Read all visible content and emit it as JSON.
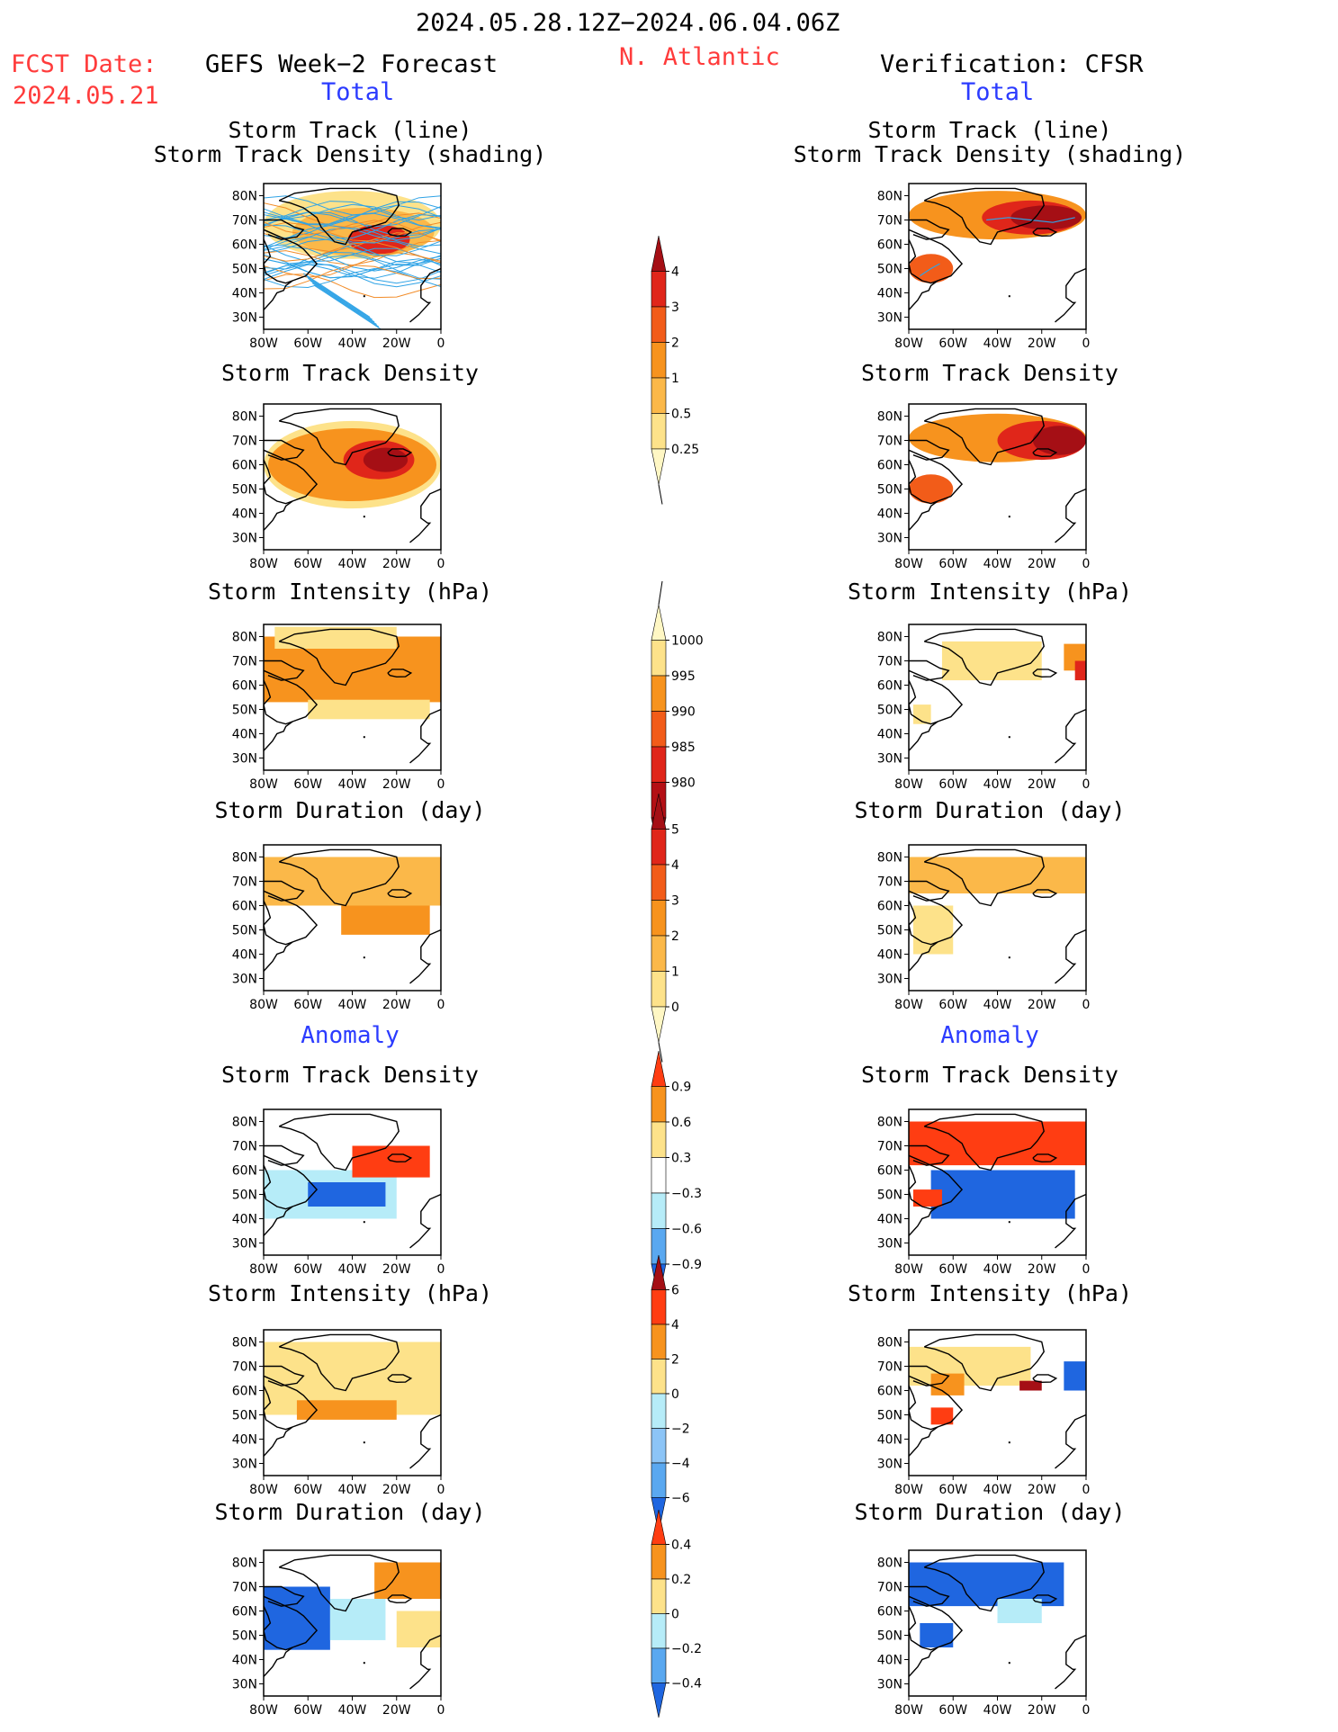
{
  "header": {
    "date_range": "2024.05.28.12Z−2024.06.04.06Z",
    "fcst_label": "FCST Date:",
    "fcst_date": "2024.05.21",
    "left_model": "GEFS Week−2 Forecast",
    "region": "N. Atlantic",
    "right_model": "Verification: CFSR",
    "total_label": "Total",
    "anomaly_label": "Anomaly"
  },
  "panel_titles": {
    "track_line": "Storm Track (line)",
    "track_shading": "Storm Track Density (shading)",
    "density": "Storm Track Density",
    "intensity": "Storm Intensity (hPa)",
    "duration": "Storm Duration (day)"
  },
  "axes": {
    "lat_labels": [
      "80N",
      "70N",
      "60N",
      "50N",
      "40N",
      "30N"
    ],
    "lon_labels": [
      "80W",
      "60W",
      "40W",
      "20W",
      "0"
    ]
  },
  "colorbars": [
    {
      "id": "density",
      "labels": [
        "4",
        "3",
        "2",
        "1",
        "0.5",
        "0.25"
      ],
      "colors": [
        "#a50f15",
        "#e0261a",
        "#f25c19",
        "#f7931e",
        "#fbb849",
        "#fde28a",
        "#fff7c4"
      ]
    },
    {
      "id": "intensity",
      "labels": [
        "1000",
        "995",
        "990",
        "985",
        "980"
      ],
      "colors": [
        "#fff7c4",
        "#fde28a",
        "#f7931e",
        "#f25c19",
        "#e0261a",
        "#b40f15",
        "#8b0a0f"
      ]
    },
    {
      "id": "duration",
      "labels": [
        "5",
        "4",
        "3",
        "2",
        "1",
        "0"
      ],
      "colors": [
        "#a50f15",
        "#e0261a",
        "#f25c19",
        "#f7931e",
        "#fbb849",
        "#fde28a",
        "#fff7c4"
      ]
    },
    {
      "id": "density_anom",
      "labels": [
        "0.9",
        "0.6",
        "0.3",
        "−0.3",
        "−0.6",
        "−0.9"
      ],
      "colors": [
        "#ff3d12",
        "#f7931e",
        "#fde28a",
        "#ffffff",
        "#b6ecf8",
        "#5aa8f0",
        "#1f66e0"
      ]
    },
    {
      "id": "intensity_anom",
      "labels": [
        "6",
        "4",
        "2",
        "0",
        "−2",
        "−4",
        "−6"
      ],
      "colors": [
        "#a50f15",
        "#ff3d12",
        "#f7931e",
        "#fde28a",
        "#b6ecf8",
        "#8cc4f6",
        "#5aa8f0",
        "#1f66e0"
      ]
    },
    {
      "id": "duration_anom",
      "labels": [
        "0.4",
        "0.2",
        "0",
        "−0.2",
        "−0.4"
      ],
      "colors": [
        "#ff3d12",
        "#f7931e",
        "#fde28a",
        "#b6ecf8",
        "#5aa8f0",
        "#1f66e0"
      ]
    }
  ],
  "chart_data": {
    "type": "heatmap",
    "lat_range": [
      25,
      85
    ],
    "lon_range": [
      -80,
      0
    ],
    "panels": [
      {
        "id": "L-track",
        "column": "forecast",
        "row": "total",
        "field": "Storm Track Density (shading) + Storm Track (line)",
        "blobs": [
          {
            "lon": -40,
            "lat": 68,
            "r": [
              40,
              14
            ],
            "color": "#fde28a"
          },
          {
            "lon": -35,
            "lat": 65,
            "r": [
              32,
              10
            ],
            "color": "#fbb849"
          },
          {
            "lon": -28,
            "lat": 62,
            "r": [
              14,
              6
            ],
            "color": "#e0261a"
          }
        ]
      },
      {
        "id": "R-track",
        "column": "verification",
        "row": "total",
        "field": "Storm Track Density (shading) + Storm Track (line)",
        "blobs": [
          {
            "lon": -40,
            "lat": 72,
            "r": [
              40,
              10
            ],
            "color": "#f7931e"
          },
          {
            "lon": -25,
            "lat": 71,
            "r": [
              22,
              7
            ],
            "color": "#e0261a"
          },
          {
            "lon": -18,
            "lat": 71,
            "r": [
              16,
              5
            ],
            "color": "#a50f15"
          },
          {
            "lon": -70,
            "lat": 50,
            "r": [
              10,
              6
            ],
            "color": "#f25c19"
          }
        ]
      },
      {
        "id": "L-density",
        "column": "forecast",
        "row": "total",
        "field": "Storm Track Density",
        "blobs": [
          {
            "lon": -40,
            "lat": 60,
            "r": [
              40,
              18
            ],
            "color": "#fde28a"
          },
          {
            "lon": -40,
            "lat": 60,
            "r": [
              38,
              15
            ],
            "color": "#f7931e"
          },
          {
            "lon": -28,
            "lat": 62,
            "r": [
              16,
              8
            ],
            "color": "#e0261a"
          },
          {
            "lon": -25,
            "lat": 62,
            "r": [
              10,
              5
            ],
            "color": "#a50f15"
          }
        ]
      },
      {
        "id": "R-density",
        "column": "verification",
        "row": "total",
        "field": "Storm Track Density",
        "blobs": [
          {
            "lon": -40,
            "lat": 71,
            "r": [
              40,
              10
            ],
            "color": "#f7931e"
          },
          {
            "lon": -20,
            "lat": 70,
            "r": [
              20,
              8
            ],
            "color": "#e0261a"
          },
          {
            "lon": -12,
            "lat": 70,
            "r": [
              12,
              6
            ],
            "color": "#a50f15"
          },
          {
            "lon": -70,
            "lat": 50,
            "r": [
              10,
              6
            ],
            "color": "#f25c19"
          }
        ]
      },
      {
        "id": "L-intensity",
        "column": "forecast",
        "row": "total",
        "field": "Storm Intensity (hPa)",
        "cells": [
          {
            "lon": [
              -80,
              0
            ],
            "lat": [
              53,
              80
            ],
            "color": "#f7931e"
          },
          {
            "lon": [
              -75,
              -20
            ],
            "lat": [
              75,
              84
            ],
            "color": "#fde28a"
          },
          {
            "lon": [
              -60,
              -5
            ],
            "lat": [
              46,
              54
            ],
            "color": "#fde28a"
          }
        ]
      },
      {
        "id": "R-intensity",
        "column": "verification",
        "row": "total",
        "field": "Storm Intensity (hPa)",
        "cells": [
          {
            "lon": [
              -65,
              -20
            ],
            "lat": [
              62,
              78
            ],
            "color": "#fde28a"
          },
          {
            "lon": [
              -10,
              0
            ],
            "lat": [
              66,
              77
            ],
            "color": "#f7931e"
          },
          {
            "lon": [
              -5,
              0
            ],
            "lat": [
              62,
              70
            ],
            "color": "#e0261a"
          },
          {
            "lon": [
              -78,
              -70
            ],
            "lat": [
              44,
              52
            ],
            "color": "#fde28a"
          }
        ]
      },
      {
        "id": "L-duration",
        "column": "forecast",
        "row": "total",
        "field": "Storm Duration (day)",
        "cells": [
          {
            "lon": [
              -80,
              0
            ],
            "lat": [
              60,
              80
            ],
            "color": "#fbb849"
          },
          {
            "lon": [
              -45,
              -5
            ],
            "lat": [
              48,
              60
            ],
            "color": "#f7931e"
          }
        ]
      },
      {
        "id": "R-duration",
        "column": "verification",
        "row": "total",
        "field": "Storm Duration (day)",
        "cells": [
          {
            "lon": [
              -80,
              0
            ],
            "lat": [
              65,
              80
            ],
            "color": "#fbb849"
          },
          {
            "lon": [
              -78,
              -60
            ],
            "lat": [
              40,
              60
            ],
            "color": "#fde28a"
          }
        ]
      },
      {
        "id": "L-density-anom",
        "column": "forecast",
        "row": "anomaly",
        "field": "Storm Track Density",
        "cells": [
          {
            "lon": [
              -80,
              -20
            ],
            "lat": [
              40,
              60
            ],
            "color": "#b6ecf8"
          },
          {
            "lon": [
              -60,
              -25
            ],
            "lat": [
              45,
              55
            ],
            "color": "#1f66e0"
          },
          {
            "lon": [
              -40,
              -5
            ],
            "lat": [
              57,
              70
            ],
            "color": "#ff3d12"
          }
        ]
      },
      {
        "id": "R-density-anom",
        "column": "verification",
        "row": "anomaly",
        "field": "Storm Track Density",
        "cells": [
          {
            "lon": [
              -80,
              0
            ],
            "lat": [
              62,
              80
            ],
            "color": "#ff3d12"
          },
          {
            "lon": [
              -70,
              -5
            ],
            "lat": [
              40,
              60
            ],
            "color": "#1f66e0"
          },
          {
            "lon": [
              -78,
              -65
            ],
            "lat": [
              45,
              52
            ],
            "color": "#ff3d12"
          }
        ]
      },
      {
        "id": "L-intensity-anom",
        "column": "forecast",
        "row": "anomaly",
        "field": "Storm Intensity (hPa)",
        "cells": [
          {
            "lon": [
              -80,
              0
            ],
            "lat": [
              50,
              80
            ],
            "color": "#fde28a"
          },
          {
            "lon": [
              -65,
              -20
            ],
            "lat": [
              48,
              56
            ],
            "color": "#f7931e"
          }
        ]
      },
      {
        "id": "R-intensity-anom",
        "column": "verification",
        "row": "anomaly",
        "field": "Storm Intensity (hPa)",
        "cells": [
          {
            "lon": [
              -80,
              -25
            ],
            "lat": [
              62,
              78
            ],
            "color": "#fde28a"
          },
          {
            "lon": [
              -70,
              -55
            ],
            "lat": [
              58,
              67
            ],
            "color": "#f7931e"
          },
          {
            "lon": [
              -10,
              0
            ],
            "lat": [
              60,
              72
            ],
            "color": "#1f66e0"
          },
          {
            "lon": [
              -30,
              -20
            ],
            "lat": [
              60,
              64
            ],
            "color": "#a50f15"
          },
          {
            "lon": [
              -70,
              -60
            ],
            "lat": [
              46,
              53
            ],
            "color": "#ff3d12"
          }
        ]
      },
      {
        "id": "L-duration-anom",
        "column": "forecast",
        "row": "anomaly",
        "field": "Storm Duration (day)",
        "cells": [
          {
            "lon": [
              -80,
              -50
            ],
            "lat": [
              44,
              70
            ],
            "color": "#1f66e0"
          },
          {
            "lon": [
              -50,
              -25
            ],
            "lat": [
              48,
              65
            ],
            "color": "#b6ecf8"
          },
          {
            "lon": [
              -30,
              0
            ],
            "lat": [
              65,
              80
            ],
            "color": "#f7931e"
          },
          {
            "lon": [
              -20,
              0
            ],
            "lat": [
              45,
              60
            ],
            "color": "#fde28a"
          }
        ]
      },
      {
        "id": "R-duration-anom",
        "column": "verification",
        "row": "anomaly",
        "field": "Storm Duration (day)",
        "cells": [
          {
            "lon": [
              -80,
              -10
            ],
            "lat": [
              62,
              80
            ],
            "color": "#1f66e0"
          },
          {
            "lon": [
              -75,
              -60
            ],
            "lat": [
              45,
              55
            ],
            "color": "#1f66e0"
          },
          {
            "lon": [
              -40,
              -20
            ],
            "lat": [
              55,
              65
            ],
            "color": "#b6ecf8"
          }
        ]
      }
    ]
  }
}
